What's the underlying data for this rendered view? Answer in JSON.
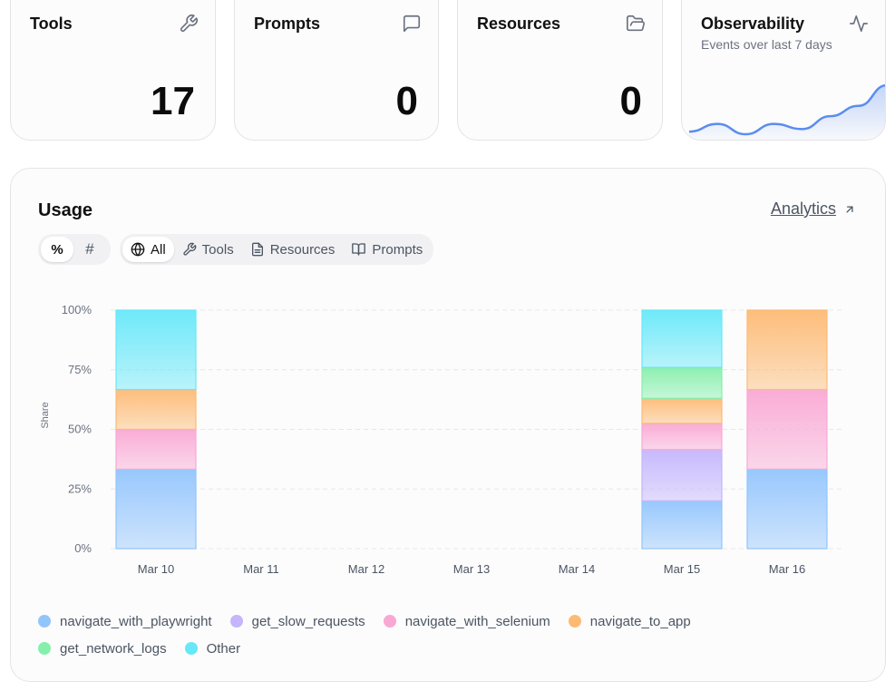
{
  "stats": [
    {
      "title": "Tools",
      "value": "17",
      "icon": "wrench-icon"
    },
    {
      "title": "Prompts",
      "value": "0",
      "icon": "message-square-icon"
    },
    {
      "title": "Resources",
      "value": "0",
      "icon": "folder-open-icon"
    }
  ],
  "observability": {
    "title": "Observability",
    "subtitle": "Events over last 7 days",
    "icon": "activity-icon",
    "sparkline": [
      4,
      7,
      3,
      7,
      5,
      10,
      14,
      22
    ]
  },
  "usage": {
    "title": "Usage",
    "analytics_label": "Analytics",
    "mode_toggle": [
      {
        "label": "%",
        "active": true
      },
      {
        "label": "#",
        "active": false
      }
    ],
    "filters": [
      {
        "label": "All",
        "icon": "globe-icon",
        "active": true
      },
      {
        "label": "Tools",
        "icon": "wrench-icon",
        "active": false
      },
      {
        "label": "Resources",
        "icon": "file-text-icon",
        "active": false
      },
      {
        "label": "Prompts",
        "icon": "book-open-icon",
        "active": false
      }
    ]
  },
  "chart_data": {
    "type": "bar",
    "stacked": true,
    "ylabel": "Share",
    "ylim": [
      0,
      100
    ],
    "yticks": [
      "0%",
      "25%",
      "50%",
      "75%",
      "100%"
    ],
    "categories": [
      "Mar 10",
      "Mar 11",
      "Mar 12",
      "Mar 13",
      "Mar 14",
      "Mar 15",
      "Mar 16"
    ],
    "series": [
      {
        "name": "navigate_with_playwright",
        "color": "#93c5fd",
        "values": [
          33.3,
          0,
          0,
          0,
          0,
          20,
          33.3
        ]
      },
      {
        "name": "get_slow_requests",
        "color": "#c4b5fd",
        "values": [
          0,
          0,
          0,
          0,
          0,
          21.5,
          0
        ]
      },
      {
        "name": "navigate_with_selenium",
        "color": "#f9a8d4",
        "values": [
          16.7,
          0,
          0,
          0,
          0,
          11,
          33.4
        ]
      },
      {
        "name": "navigate_to_app",
        "color": "#fdba74",
        "values": [
          16.7,
          0,
          0,
          0,
          0,
          10.5,
          33.3
        ]
      },
      {
        "name": "get_network_logs",
        "color": "#86efac",
        "values": [
          0,
          0,
          0,
          0,
          0,
          13,
          0
        ]
      },
      {
        "name": "Other",
        "color": "#67e8f9",
        "values": [
          33.3,
          0,
          0,
          0,
          0,
          24,
          0
        ]
      }
    ],
    "grid": true,
    "legend": "bottom"
  }
}
